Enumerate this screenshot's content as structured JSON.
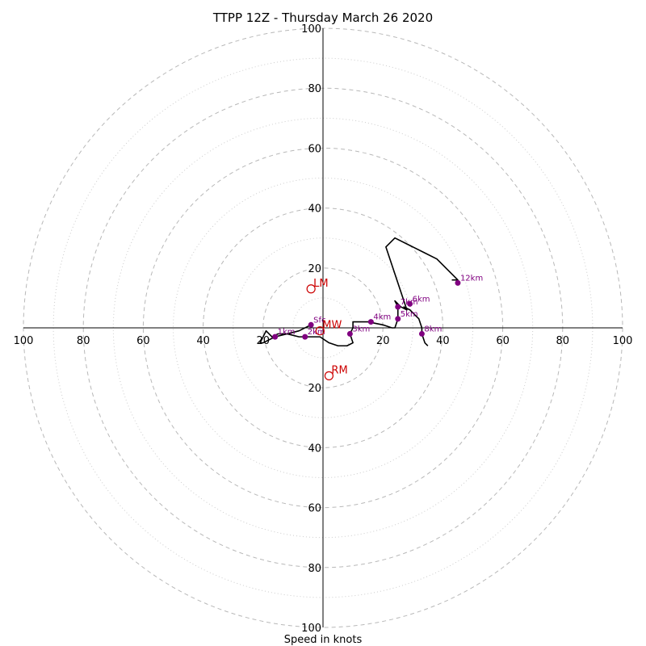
{
  "chart_data": {
    "type": "scatter",
    "subtype": "hodograph",
    "title": "TTPP 12Z - Thursday March 26 2020",
    "xlabel": "Speed in knots",
    "ylabel": "",
    "xlim": [
      -100,
      100
    ],
    "ylim": [
      -100,
      100
    ],
    "grid": true,
    "rings": {
      "major": [
        20,
        40,
        60,
        80,
        100
      ],
      "minor": [
        10,
        30,
        50,
        70,
        90
      ]
    },
    "axis_ticks": {
      "x": [
        "100",
        "80",
        "60",
        "40",
        "20",
        "20",
        "40",
        "60",
        "80",
        "100"
      ],
      "y": [
        "100",
        "80",
        "60",
        "40",
        "20",
        "20",
        "40",
        "60",
        "80",
        "100"
      ]
    },
    "trace": {
      "color": "#000000",
      "points": [
        [
          -4,
          1
        ],
        [
          -8,
          -1
        ],
        [
          -12,
          -2
        ],
        [
          -15,
          -2
        ],
        [
          -17,
          -3
        ],
        [
          -18,
          -2
        ],
        [
          -19,
          -1
        ],
        [
          -20,
          -3
        ],
        [
          -21,
          -5
        ],
        [
          -20,
          -5
        ],
        [
          -18,
          -4
        ],
        [
          -16,
          -3
        ],
        [
          -12,
          -2
        ],
        [
          -8,
          -3
        ],
        [
          -4,
          -3
        ],
        [
          -1,
          -3
        ],
        [
          2,
          -5
        ],
        [
          5,
          -6
        ],
        [
          8,
          -6
        ],
        [
          10,
          -5
        ],
        [
          9,
          -2
        ],
        [
          10,
          0
        ],
        [
          10,
          2
        ],
        [
          15,
          2
        ],
        [
          20,
          1
        ],
        [
          23,
          0
        ],
        [
          24,
          0
        ],
        [
          25,
          3
        ],
        [
          25,
          7
        ],
        [
          24,
          9
        ],
        [
          26,
          7
        ],
        [
          28,
          6
        ],
        [
          27,
          7
        ],
        [
          29,
          6
        ],
        [
          31,
          4
        ],
        [
          32,
          3
        ],
        [
          33,
          0
        ],
        [
          33,
          -2
        ],
        [
          34,
          -5
        ],
        [
          35,
          -6
        ]
      ]
    },
    "upper_trace": {
      "color": "#000000",
      "points": [
        [
          28,
          6
        ],
        [
          26,
          12
        ],
        [
          24,
          18
        ],
        [
          21,
          27
        ],
        [
          24,
          30
        ],
        [
          30,
          27
        ],
        [
          34,
          25
        ],
        [
          38,
          23
        ],
        [
          42,
          19
        ],
        [
          45,
          16
        ],
        [
          43,
          16
        ]
      ]
    },
    "height_markers": {
      "color": "#800080",
      "points": [
        {
          "label": "Sfc",
          "u": -4,
          "v": 1
        },
        {
          "label": "1km",
          "u": -16,
          "v": -3
        },
        {
          "label": "2km",
          "u": -6,
          "v": -3
        },
        {
          "label": "3km",
          "u": 9,
          "v": -2
        },
        {
          "label": "4km",
          "u": 16,
          "v": 2
        },
        {
          "label": "5km",
          "u": 25,
          "v": 3
        },
        {
          "label": "6km",
          "u": 29,
          "v": 8
        },
        {
          "label": "7km",
          "u": 25,
          "v": 7
        },
        {
          "label": "8km",
          "u": 33,
          "v": -2
        },
        {
          "label": "12km",
          "u": 45,
          "v": 15
        }
      ]
    },
    "storm_motion": {
      "color": "#cc0000",
      "points": [
        {
          "label": "LM",
          "u": -4,
          "v": 13
        },
        {
          "label": "MW",
          "u": -1,
          "v": -1
        },
        {
          "label": "RM",
          "u": 2,
          "v": -16
        }
      ]
    }
  }
}
